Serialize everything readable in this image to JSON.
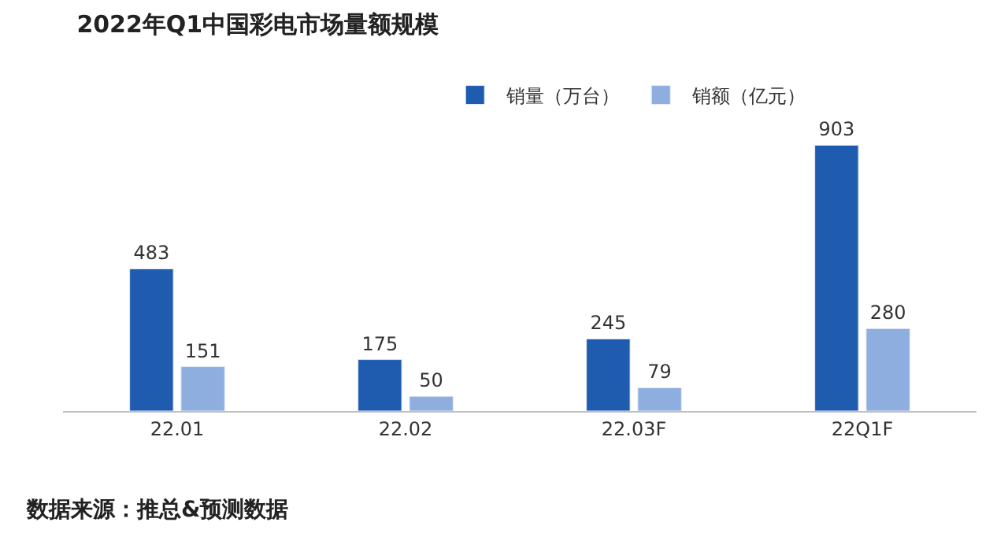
{
  "chart_data": {
    "type": "bar",
    "title": "2022年Q1中国彩电市场量额规模",
    "categories": [
      "22.01",
      "22.02",
      "22.03F",
      "22Q1F"
    ],
    "series": [
      {
        "name": "销量（万台）",
        "color": "#1f5cb0",
        "values": [
          483,
          175,
          245,
          903
        ]
      },
      {
        "name": "销额（亿元）",
        "color": "#8faee0",
        "values": [
          151,
          50,
          79,
          280
        ]
      }
    ],
    "data_labels": true,
    "legend": "top",
    "annotations": [
      "数据来源：推总&预测数据"
    ]
  }
}
